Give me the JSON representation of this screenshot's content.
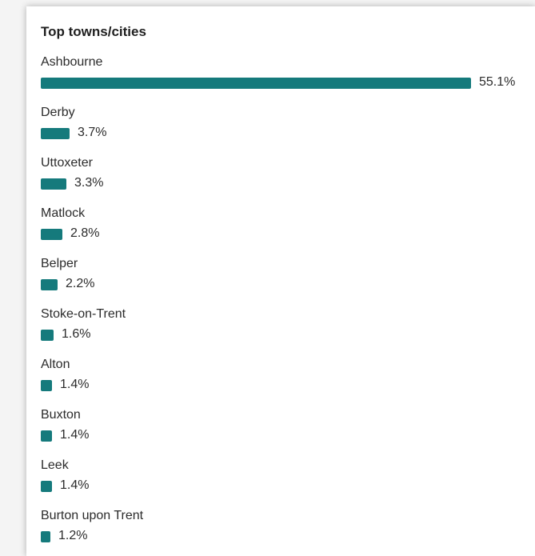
{
  "card": {
    "title": "Top towns/cities"
  },
  "colors": {
    "bar": "#157a7c"
  },
  "chart_data": {
    "type": "bar",
    "orientation": "horizontal",
    "title": "Top towns/cities",
    "unit": "%",
    "categories": [
      "Ashbourne",
      "Derby",
      "Uttoxeter",
      "Matlock",
      "Belper",
      "Stoke-on-Trent",
      "Alton",
      "Buxton",
      "Leek",
      "Burton upon Trent"
    ],
    "values": [
      55.1,
      3.7,
      3.3,
      2.8,
      2.2,
      1.6,
      1.4,
      1.4,
      1.4,
      1.2
    ],
    "value_labels": [
      "55.1%",
      "3.7%",
      "3.3%",
      "2.8%",
      "2.2%",
      "1.6%",
      "1.4%",
      "1.4%",
      "1.4%",
      "1.2%"
    ]
  }
}
